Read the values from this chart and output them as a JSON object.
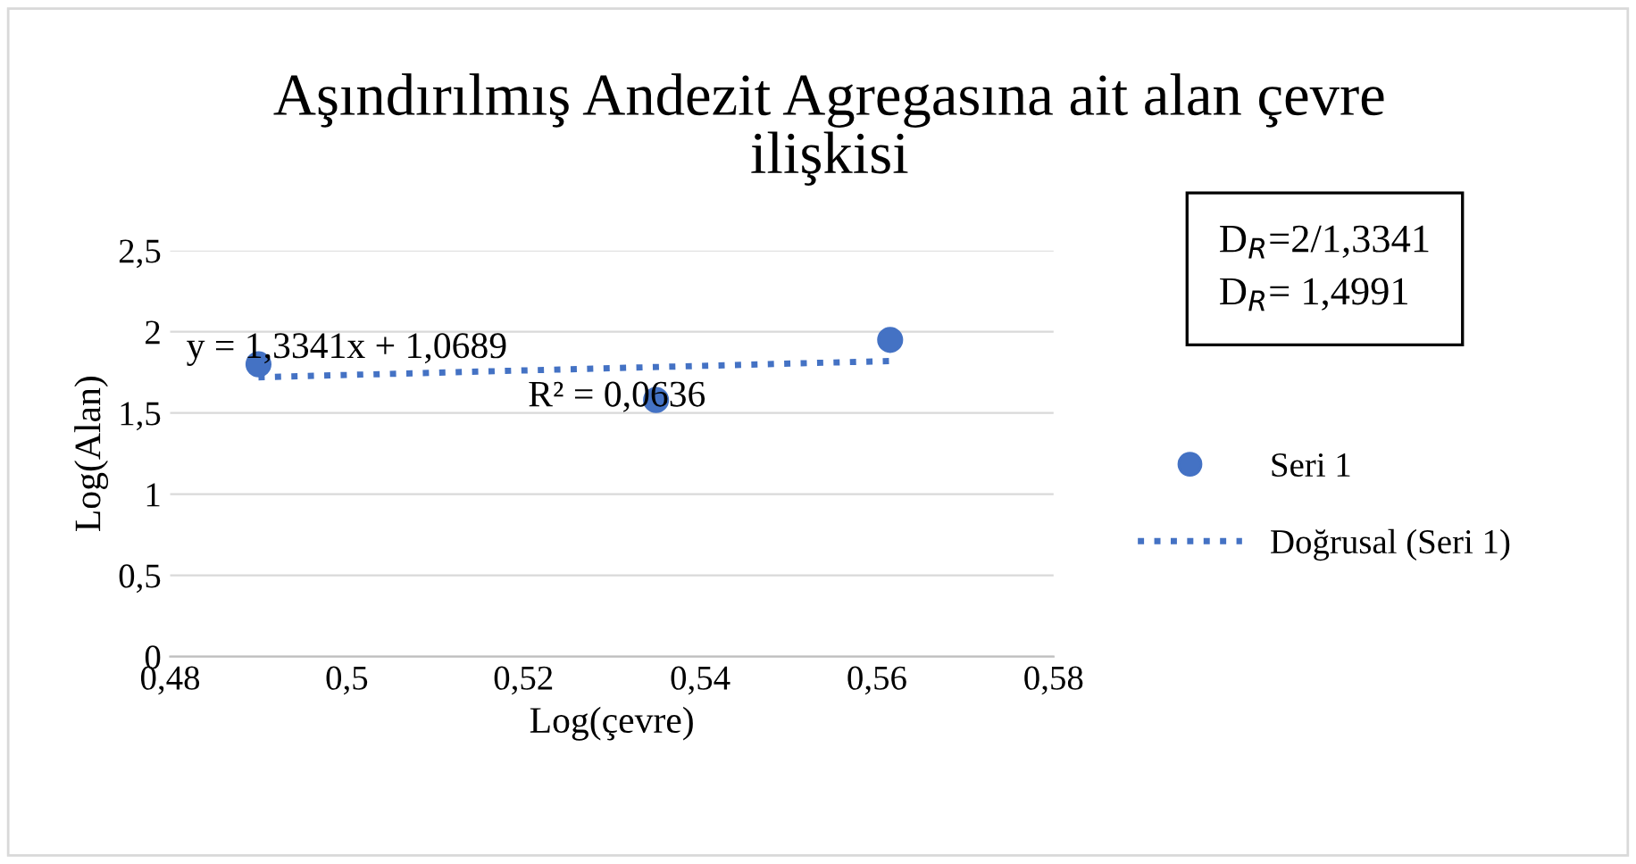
{
  "chart_data": {
    "type": "scatter",
    "title": "Aşındırılmış Andezit Agregasına ait alan çevre ilişkisi",
    "xlabel": "Log(çevre)",
    "ylabel": "Log(Alan)",
    "series": [
      {
        "name": "Seri 1",
        "color": "#4472c4",
        "x": [
          0.49,
          0.535,
          0.5615
        ],
        "values": [
          1.8,
          1.58,
          1.95
        ],
        "marker": "circle"
      },
      {
        "name": "Doğrusal (Seri 1)",
        "type": "line",
        "color": "#4472c4",
        "x": [
          0.49,
          0.5615
        ],
        "values": [
          1.72,
          1.82
        ],
        "line_style": "dotted"
      }
    ],
    "xlim": [
      0.48,
      0.58
    ],
    "ylim": [
      0,
      2.5
    ],
    "xticks": [
      {
        "value": 0.48,
        "label": "0,48"
      },
      {
        "value": 0.5,
        "label": "0,5"
      },
      {
        "value": 0.52,
        "label": "0,52"
      },
      {
        "value": 0.54,
        "label": "0,54"
      },
      {
        "value": 0.56,
        "label": "0,56"
      },
      {
        "value": 0.58,
        "label": "0,58"
      }
    ],
    "yticks": [
      0,
      {
        "value": 0.5,
        "label": "0,5"
      },
      1,
      {
        "value": 1.5,
        "label": "1,5"
      },
      2,
      {
        "value": 2.5,
        "label": "2,5"
      }
    ],
    "grid": "y",
    "legend": "right",
    "annotations": [
      "y = 1,3341x + 1,0689",
      "R² = 0,0636",
      "D$_{R}$=2/1,3341\nD$_{R}$= 1,4991"
    ]
  }
}
